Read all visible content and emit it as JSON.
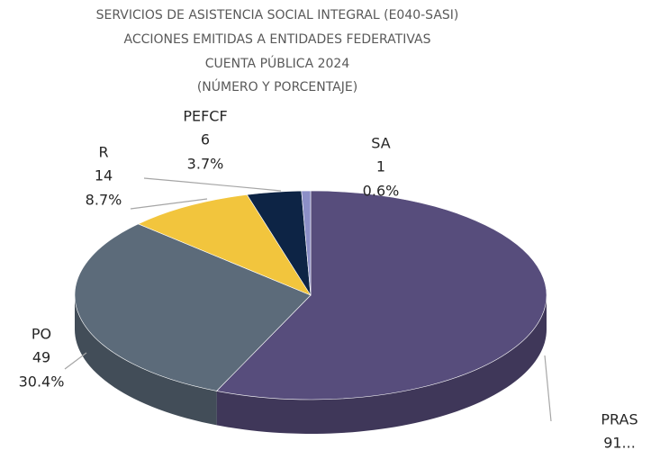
{
  "chart_data": {
    "type": "pie3d",
    "title": [
      "SERVICIOS DE ASISTENCIA SOCIAL INTEGRAL (E040-SASI)",
      "ACCIONES EMITIDAS A ENTIDADES FEDERATIVAS",
      "CUENTA PÚBLICA 2024",
      "(NÚMERO Y PORCENTAJE)"
    ],
    "categories": [
      "PRAS",
      "PO",
      "R",
      "PEFCF",
      "SA"
    ],
    "values": [
      91,
      49,
      14,
      6,
      1
    ],
    "value_labels": [
      "91...",
      null,
      null,
      null,
      null
    ],
    "percent_labels": [
      null,
      "30.4%",
      "8.7%",
      "3.7%",
      "0.6%"
    ],
    "colors": [
      "#574d7c",
      "#5c6b7a",
      "#f2c53d",
      "#0d2445",
      "#8c8fc7"
    ]
  }
}
